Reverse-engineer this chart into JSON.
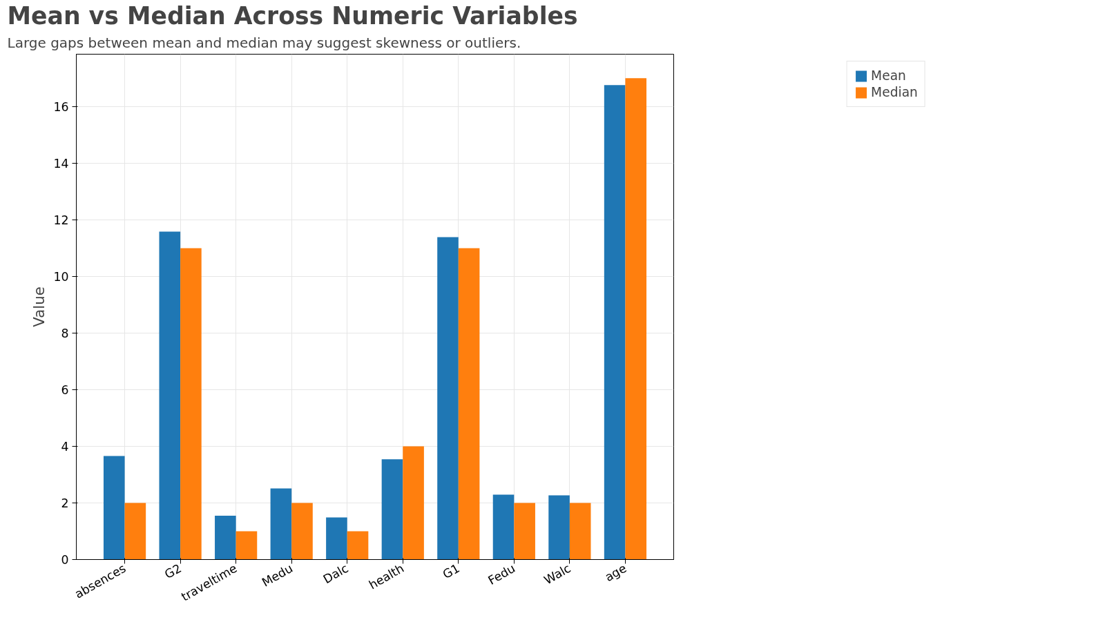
{
  "chart_data": {
    "type": "bar",
    "title": "Mean vs Median Across Numeric Variables",
    "subtitle": "Large gaps between mean and median may suggest skewness or outliers.",
    "ylabel": "Value",
    "categories": [
      "absences",
      "G2",
      "traveltime",
      "Medu",
      "Dalc",
      "health",
      "G1",
      "Fedu",
      "Walc",
      "age"
    ],
    "series": [
      {
        "name": "Mean",
        "color": "#1f77b4",
        "values": [
          3.66,
          11.58,
          1.55,
          2.51,
          1.49,
          3.54,
          11.39,
          2.29,
          2.27,
          16.76
        ]
      },
      {
        "name": "Median",
        "color": "#ff7f0e",
        "values": [
          2,
          11,
          1,
          2,
          1,
          4,
          11,
          2,
          2,
          17
        ]
      }
    ],
    "ylim": [
      0,
      17.85
    ],
    "yticks": [
      0,
      2,
      4,
      6,
      8,
      10,
      12,
      14,
      16
    ],
    "grid": true,
    "legend": "top right"
  }
}
